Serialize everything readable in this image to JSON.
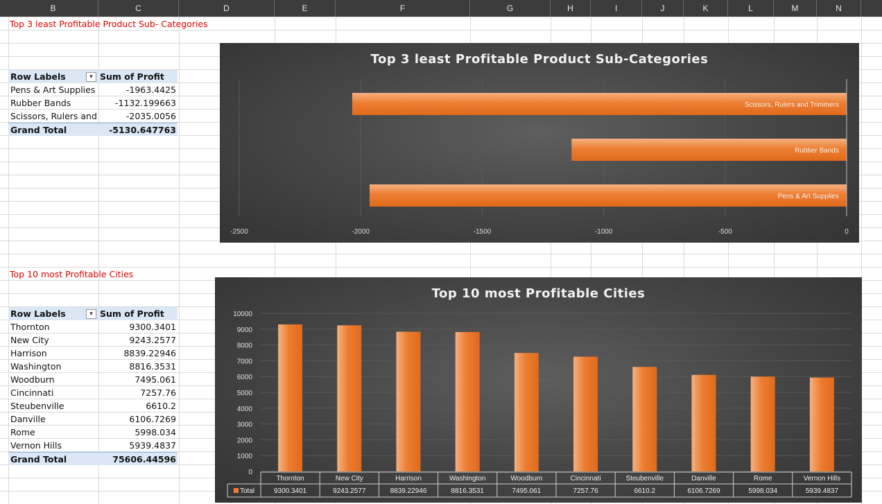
{
  "columns": [
    "B",
    "C",
    "D",
    "E",
    "F",
    "G",
    "H",
    "I",
    "J",
    "K",
    "L",
    "M",
    "N"
  ],
  "section1": {
    "title": "Top 3 least Profitable Product Sub- Categories",
    "header": {
      "row_labels": "Row Labels",
      "sum_label": "Sum of Profit"
    },
    "rows": [
      {
        "label": "Pens & Art Supplies",
        "value": "-1963.4425"
      },
      {
        "label": "Rubber Bands",
        "value": "-1132.199663"
      },
      {
        "label": "Scissors, Rulers and T",
        "value": "-2035.0056"
      }
    ],
    "grand_total": {
      "label": "Grand Total",
      "value": "-5130.647763"
    }
  },
  "section2": {
    "title": "Top 10 most Profitable Cities",
    "header": {
      "row_labels": "Row Labels",
      "sum_label": "Sum of Profit"
    },
    "rows": [
      {
        "label": "Thornton",
        "value": "9300.3401"
      },
      {
        "label": "New City",
        "value": "9243.2577"
      },
      {
        "label": "Harrison",
        "value": "8839.22946"
      },
      {
        "label": "Washington",
        "value": "8816.3531"
      },
      {
        "label": "Woodburn",
        "value": "7495.061"
      },
      {
        "label": "Cincinnati",
        "value": "7257.76"
      },
      {
        "label": "Steubenville",
        "value": "6610.2"
      },
      {
        "label": "Danville",
        "value": "6106.7269"
      },
      {
        "label": "Rome",
        "value": "5998.034"
      },
      {
        "label": "Vernon Hills",
        "value": "5939.4837"
      }
    ],
    "grand_total": {
      "label": "Grand Total",
      "value": "75606.44596"
    }
  },
  "chart_data": [
    {
      "type": "bar",
      "orientation": "horizontal",
      "title": "Top  3 least Profitable Product Sub-Categories",
      "categories": [
        "Scissors, Rulers and Trimmers",
        "Rubber Bands",
        "Pens & Art Supplies"
      ],
      "values": [
        -2035.0056,
        -1132.199663,
        -1963.4425
      ],
      "xlim": [
        -2500,
        0
      ],
      "xticks": [
        "-2500",
        "-2000",
        "-1500",
        "-1000",
        "-500",
        "0"
      ],
      "grid": true,
      "color": "#ed7d31"
    },
    {
      "type": "bar",
      "title": "Top 10 most Profitable Cities",
      "categories": [
        "Thornton",
        "New City",
        "Harrison",
        "Washington",
        "Woodburn",
        "Cincinnati",
        "Steubenville",
        "Danville",
        "Rome",
        "Vernon Hills"
      ],
      "values": [
        9300.3401,
        9243.2577,
        8839.22946,
        8816.3531,
        7495.061,
        7257.76,
        6610.2,
        6106.7269,
        5998.034,
        5939.4837
      ],
      "value_labels": [
        "9300.3401",
        "9243.2577",
        "8839.22946",
        "8816.3531",
        "7495.061",
        "7257.76",
        "6610.2",
        "6106.7269",
        "5998.034",
        "5939.4837"
      ],
      "ylim": [
        0,
        10000
      ],
      "yticks": [
        "0",
        "1000",
        "2000",
        "3000",
        "4000",
        "5000",
        "6000",
        "7000",
        "8000",
        "9000",
        "10000"
      ],
      "series": [
        {
          "name": "Total"
        }
      ],
      "data_table": true,
      "grid": true,
      "color": "#ed7d31"
    }
  ]
}
